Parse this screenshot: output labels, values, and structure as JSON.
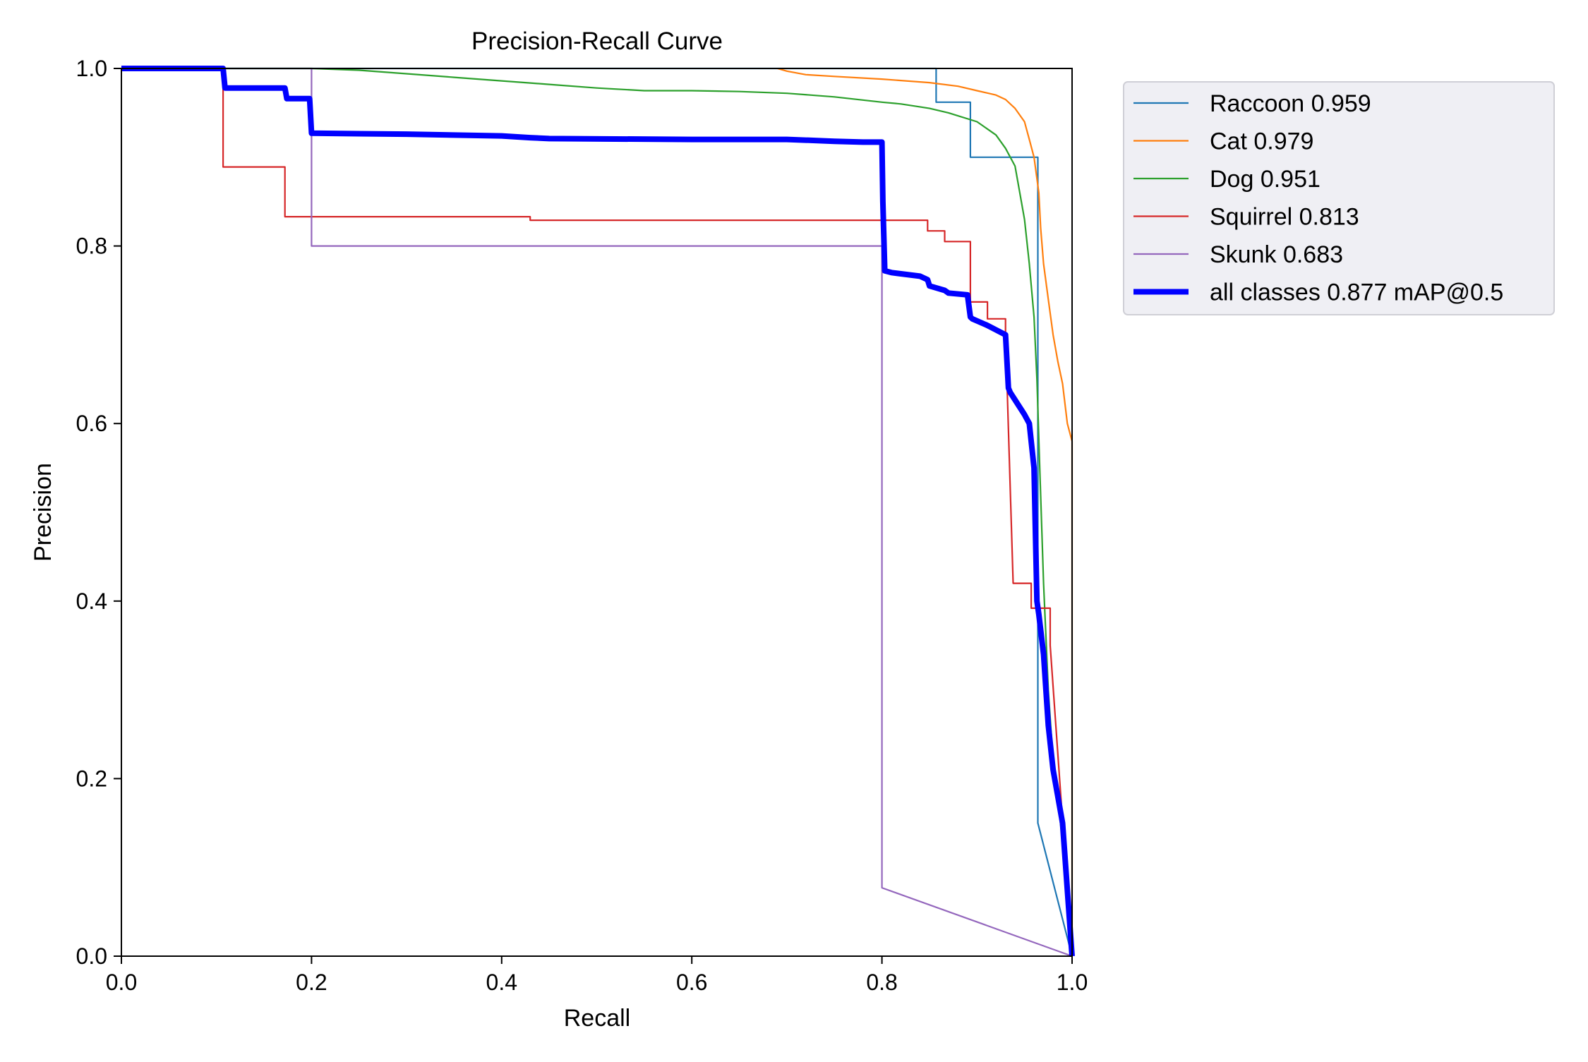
{
  "chart_data": {
    "type": "line",
    "title": "Precision-Recall Curve",
    "xlabel": "Recall",
    "ylabel": "Precision",
    "xlim": [
      0,
      1
    ],
    "ylim": [
      0,
      1
    ],
    "xticks": [
      "0.0",
      "0.2",
      "0.4",
      "0.6",
      "0.8",
      "1.0"
    ],
    "yticks": [
      "0.0",
      "0.2",
      "0.4",
      "0.6",
      "0.8",
      "1.0"
    ],
    "grid": false,
    "legend_position": "outside top-right",
    "series": [
      {
        "name": "Raccoon 0.959",
        "color": "#1f77b4",
        "x": [
          0.0,
          0.857,
          0.857,
          0.893,
          0.893,
          0.964,
          0.964,
          0.964,
          1.0
        ],
        "y": [
          1.0,
          1.0,
          0.962,
          0.962,
          0.9,
          0.9,
          0.385,
          0.15,
          0.0
        ]
      },
      {
        "name": "Cat 0.979",
        "color": "#ff7f0e",
        "x": [
          0.69,
          0.7,
          0.72,
          0.75,
          0.8,
          0.85,
          0.88,
          0.9,
          0.92,
          0.93,
          0.94,
          0.95,
          0.955,
          0.96,
          0.965,
          0.967,
          0.97,
          0.975,
          0.98,
          0.985,
          0.99,
          0.995,
          1.0,
          1.0
        ],
        "y": [
          1.0,
          0.997,
          0.993,
          0.991,
          0.988,
          0.984,
          0.98,
          0.975,
          0.97,
          0.965,
          0.955,
          0.94,
          0.92,
          0.9,
          0.86,
          0.82,
          0.78,
          0.74,
          0.7,
          0.67,
          0.645,
          0.6,
          0.58,
          0.0
        ]
      },
      {
        "name": "Dog 0.951",
        "color": "#2ca02c",
        "x": [
          0.0,
          0.2,
          0.25,
          0.3,
          0.35,
          0.4,
          0.45,
          0.5,
          0.55,
          0.6,
          0.65,
          0.7,
          0.75,
          0.8,
          0.82,
          0.85,
          0.87,
          0.9,
          0.92,
          0.93,
          0.94,
          0.945,
          0.95,
          0.955,
          0.96,
          0.963,
          0.966,
          0.97,
          0.975,
          0.98,
          0.99,
          1.0
        ],
        "y": [
          1.0,
          1.0,
          0.998,
          0.994,
          0.99,
          0.986,
          0.982,
          0.978,
          0.975,
          0.975,
          0.974,
          0.972,
          0.968,
          0.962,
          0.96,
          0.955,
          0.95,
          0.94,
          0.925,
          0.91,
          0.89,
          0.86,
          0.83,
          0.78,
          0.72,
          0.65,
          0.55,
          0.42,
          0.3,
          0.22,
          0.13,
          0.0
        ]
      },
      {
        "name": "Squirrel 0.813",
        "color": "#d62728",
        "x": [
          0.0,
          0.107,
          0.107,
          0.172,
          0.172,
          0.43,
          0.43,
          0.848,
          0.848,
          0.866,
          0.866,
          0.893,
          0.893,
          0.911,
          0.911,
          0.93,
          0.93,
          0.938,
          0.938,
          0.957,
          0.957,
          0.977,
          0.977,
          1.0
        ],
        "y": [
          1.0,
          1.0,
          0.889,
          0.889,
          0.833,
          0.833,
          0.829,
          0.829,
          0.817,
          0.817,
          0.805,
          0.805,
          0.737,
          0.737,
          0.718,
          0.718,
          0.7,
          0.42,
          0.42,
          0.42,
          0.392,
          0.392,
          0.35,
          0.0
        ]
      },
      {
        "name": "Skunk 0.683",
        "color": "#9467bd",
        "x": [
          0.0,
          0.2,
          0.2,
          0.8,
          0.8,
          1.0
        ],
        "y": [
          1.0,
          1.0,
          0.8,
          0.8,
          0.077,
          0.0
        ]
      },
      {
        "name": "all classes 0.877 mAP@0.5",
        "color": "#0000ff",
        "linewidth": "thick",
        "x": [
          0.0,
          0.107,
          0.109,
          0.172,
          0.174,
          0.198,
          0.2,
          0.3,
          0.4,
          0.43,
          0.45,
          0.6,
          0.7,
          0.75,
          0.78,
          0.8,
          0.801,
          0.803,
          0.81,
          0.84,
          0.848,
          0.85,
          0.866,
          0.87,
          0.89,
          0.893,
          0.895,
          0.91,
          0.93,
          0.933,
          0.935,
          0.95,
          0.955,
          0.96,
          0.963,
          0.965,
          0.97,
          0.975,
          0.98,
          0.99,
          1.0
        ],
        "y": [
          1.0,
          1.0,
          0.978,
          0.978,
          0.966,
          0.966,
          0.927,
          0.926,
          0.924,
          0.922,
          0.921,
          0.92,
          0.92,
          0.918,
          0.917,
          0.917,
          0.85,
          0.772,
          0.77,
          0.766,
          0.762,
          0.755,
          0.75,
          0.747,
          0.745,
          0.72,
          0.718,
          0.711,
          0.7,
          0.64,
          0.635,
          0.61,
          0.6,
          0.55,
          0.4,
          0.385,
          0.34,
          0.26,
          0.21,
          0.15,
          0.0
        ]
      }
    ]
  }
}
